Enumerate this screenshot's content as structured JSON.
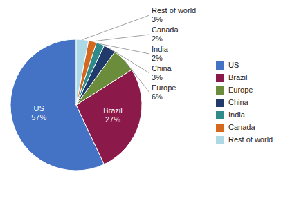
{
  "chart_data": {
    "type": "pie",
    "categories": [
      "US",
      "Brazil",
      "Europe",
      "China",
      "India",
      "Canada",
      "Rest of world"
    ],
    "values": [
      57,
      27,
      6,
      3,
      2,
      2,
      3
    ],
    "value_labels": [
      "57%",
      "27%",
      "6%",
      "3%",
      "2%",
      "2%",
      "3%"
    ],
    "colors": [
      "#4472C4",
      "#8B1A4A",
      "#6B8C3A",
      "#1F3A6B",
      "#2E8B8B",
      "#D2691E",
      "#ADD8E6"
    ],
    "data_labels": true,
    "legend": "right"
  }
}
